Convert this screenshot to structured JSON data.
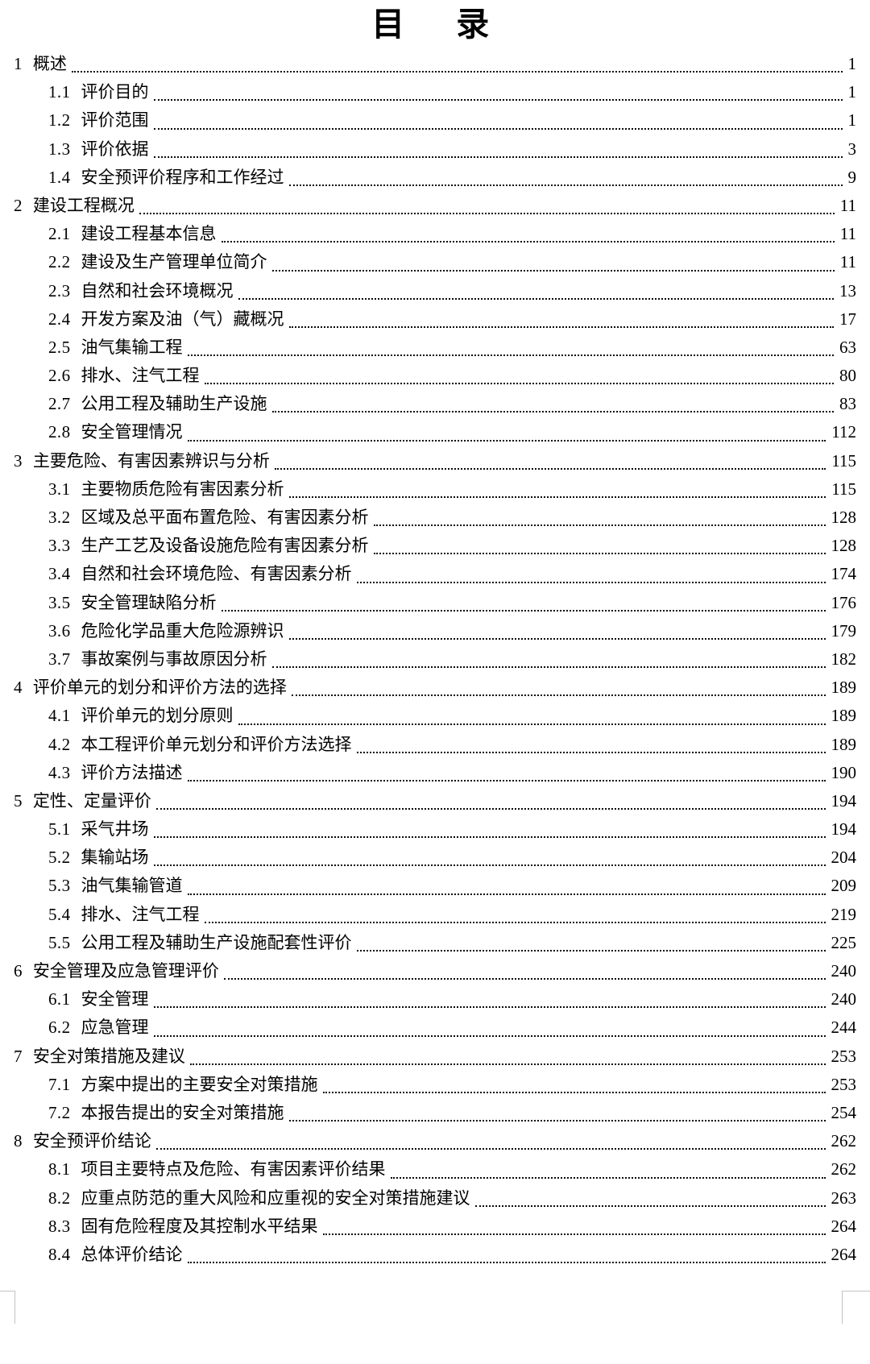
{
  "toc": {
    "title": "目　录",
    "entries": [
      {
        "level": 1,
        "num": "1",
        "label": "概述",
        "page": "1"
      },
      {
        "level": 2,
        "num": "1.1",
        "label": "评价目的",
        "page": "1"
      },
      {
        "level": 2,
        "num": "1.2",
        "label": "评价范围",
        "page": "1"
      },
      {
        "level": 2,
        "num": "1.3",
        "label": "评价依据",
        "page": "3"
      },
      {
        "level": 2,
        "num": "1.4",
        "label": "安全预评价程序和工作经过",
        "page": "9"
      },
      {
        "level": 1,
        "num": "2",
        "label": "建设工程概况",
        "page": "11"
      },
      {
        "level": 2,
        "num": "2.1",
        "label": "建设工程基本信息",
        "page": "11"
      },
      {
        "level": 2,
        "num": "2.2",
        "label": "建设及生产管理单位简介",
        "page": "11"
      },
      {
        "level": 2,
        "num": "2.3",
        "label": "自然和社会环境概况",
        "page": "13"
      },
      {
        "level": 2,
        "num": "2.4",
        "label": "开发方案及油（气）藏概况",
        "page": "17"
      },
      {
        "level": 2,
        "num": "2.5",
        "label": "油气集输工程",
        "page": "63"
      },
      {
        "level": 2,
        "num": "2.6",
        "label": "排水、注气工程",
        "page": "80"
      },
      {
        "level": 2,
        "num": "2.7",
        "label": "公用工程及辅助生产设施",
        "page": "83"
      },
      {
        "level": 2,
        "num": "2.8",
        "label": "安全管理情况",
        "page": "112"
      },
      {
        "level": 1,
        "num": "3",
        "label": "主要危险、有害因素辨识与分析",
        "page": "115"
      },
      {
        "level": 2,
        "num": "3.1",
        "label": "主要物质危险有害因素分析",
        "page": "115"
      },
      {
        "level": 2,
        "num": "3.2",
        "label": "区域及总平面布置危险、有害因素分析",
        "page": "128"
      },
      {
        "level": 2,
        "num": "3.3",
        "label": "生产工艺及设备设施危险有害因素分析",
        "page": "128"
      },
      {
        "level": 2,
        "num": "3.4",
        "label": "自然和社会环境危险、有害因素分析",
        "page": "174"
      },
      {
        "level": 2,
        "num": "3.5",
        "label": "安全管理缺陷分析",
        "page": "176"
      },
      {
        "level": 2,
        "num": "3.6",
        "label": "危险化学品重大危险源辨识",
        "page": "179"
      },
      {
        "level": 2,
        "num": "3.7",
        "label": "事故案例与事故原因分析",
        "page": "182"
      },
      {
        "level": 1,
        "num": "4",
        "label": "评价单元的划分和评价方法的选择",
        "page": "189"
      },
      {
        "level": 2,
        "num": "4.1",
        "label": "评价单元的划分原则",
        "page": "189"
      },
      {
        "level": 2,
        "num": "4.2",
        "label": "本工程评价单元划分和评价方法选择",
        "page": "189"
      },
      {
        "level": 2,
        "num": "4.3",
        "label": "评价方法描述",
        "page": "190"
      },
      {
        "level": 1,
        "num": "5",
        "label": "定性、定量评价",
        "page": "194"
      },
      {
        "level": 2,
        "num": "5.1",
        "label": "采气井场",
        "page": "194"
      },
      {
        "level": 2,
        "num": "5.2",
        "label": "集输站场",
        "page": "204"
      },
      {
        "level": 2,
        "num": "5.3",
        "label": "油气集输管道",
        "page": "209"
      },
      {
        "level": 2,
        "num": "5.4",
        "label": "排水、注气工程",
        "page": "219"
      },
      {
        "level": 2,
        "num": "5.5",
        "label": "公用工程及辅助生产设施配套性评价",
        "page": "225"
      },
      {
        "level": 1,
        "num": "6",
        "label": "安全管理及应急管理评价",
        "page": "240"
      },
      {
        "level": 2,
        "num": "6.1",
        "label": "安全管理",
        "page": "240"
      },
      {
        "level": 2,
        "num": "6.2",
        "label": "应急管理",
        "page": "244"
      },
      {
        "level": 1,
        "num": "7",
        "label": "安全对策措施及建议",
        "page": "253"
      },
      {
        "level": 2,
        "num": "7.1",
        "label": "方案中提出的主要安全对策措施",
        "page": "253"
      },
      {
        "level": 2,
        "num": "7.2",
        "label": "本报告提出的安全对策措施",
        "page": "254"
      },
      {
        "level": 1,
        "num": "8",
        "label": "安全预评价结论",
        "page": "262"
      },
      {
        "level": 2,
        "num": "8.1",
        "label": "项目主要特点及危险、有害因素评价结果",
        "page": "262"
      },
      {
        "level": 2,
        "num": "8.2",
        "label": "应重点防范的重大风险和应重视的安全对策措施建议",
        "page": "263"
      },
      {
        "level": 2,
        "num": "8.3",
        "label": "固有危险程度及其控制水平结果",
        "page": "264"
      },
      {
        "level": 2,
        "num": "8.4",
        "label": "总体评价结论",
        "page": "264"
      }
    ],
    "colors": {
      "text": "#000000",
      "dot_leader": "#0a0a0a",
      "crop_mark": "#c3c3c3"
    }
  }
}
